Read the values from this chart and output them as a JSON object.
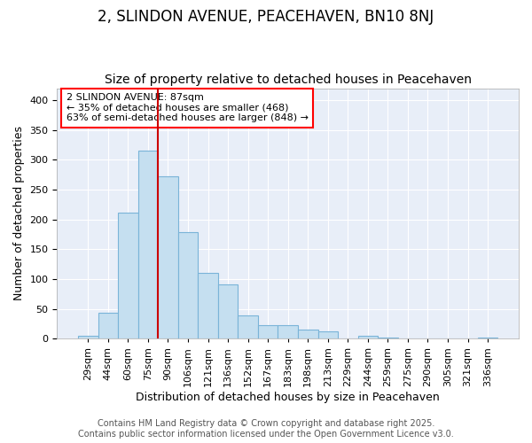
{
  "title": "2, SLINDON AVENUE, PEACEHAVEN, BN10 8NJ",
  "subtitle": "Size of property relative to detached houses in Peacehaven",
  "xlabel": "Distribution of detached houses by size in Peacehaven",
  "ylabel": "Number of detached properties",
  "categories": [
    "29sqm",
    "44sqm",
    "60sqm",
    "75sqm",
    "90sqm",
    "106sqm",
    "121sqm",
    "136sqm",
    "152sqm",
    "167sqm",
    "183sqm",
    "198sqm",
    "213sqm",
    "229sqm",
    "244sqm",
    "259sqm",
    "275sqm",
    "290sqm",
    "305sqm",
    "321sqm",
    "336sqm"
  ],
  "values": [
    5,
    43,
    211,
    315,
    272,
    179,
    110,
    91,
    39,
    22,
    23,
    15,
    12,
    0,
    5,
    2,
    1,
    0,
    0,
    0,
    2
  ],
  "bar_color": "#c5dff0",
  "bar_edge_color": "#7ab4d8",
  "reference_line_color": "#cc0000",
  "annotation_text": "2 SLINDON AVENUE: 87sqm\n← 35% of detached houses are smaller (468)\n63% of semi-detached houses are larger (848) →",
  "ylim": [
    0,
    420
  ],
  "yticks": [
    0,
    50,
    100,
    150,
    200,
    250,
    300,
    350,
    400
  ],
  "background_color": "#e8eef8",
  "footer_text": "Contains HM Land Registry data © Crown copyright and database right 2025.\nContains public sector information licensed under the Open Government Licence v3.0.",
  "title_fontsize": 12,
  "subtitle_fontsize": 10,
  "axis_label_fontsize": 9,
  "tick_fontsize": 8,
  "footer_fontsize": 7,
  "annotation_fontsize": 8
}
